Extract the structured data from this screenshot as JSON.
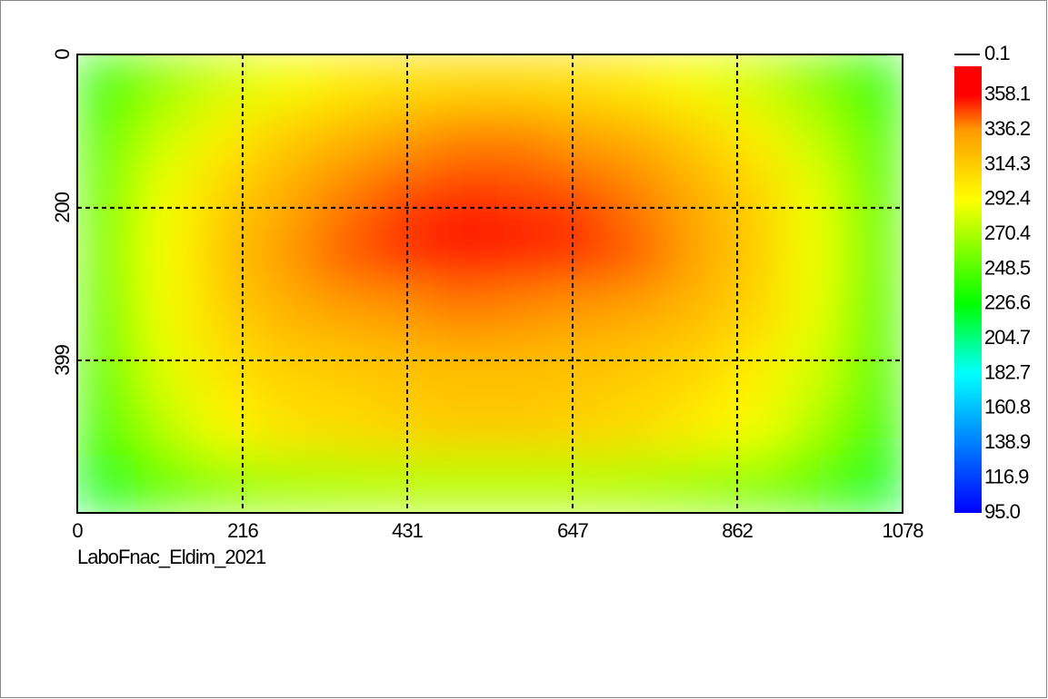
{
  "chart_data": {
    "type": "heatmap",
    "xlim": [
      0,
      1078
    ],
    "xticks": [
      0,
      216,
      431,
      647,
      862,
      1078
    ],
    "ylim": [
      0,
      598
    ],
    "yticks": [
      0,
      200,
      399
    ],
    "y_inverted": true,
    "grid": true,
    "footnote": "LaboFnac_Eldim_2021",
    "clim": [
      95,
      376.3
    ],
    "colorscale": [
      [
        95,
        "#0000ff"
      ],
      [
        182.7,
        "#00ffff"
      ],
      [
        226.6,
        "#00ff00"
      ],
      [
        292.4,
        "#ffff00"
      ],
      [
        336.2,
        "#ff9900"
      ],
      [
        358.1,
        "#ff0000"
      ]
    ],
    "colorbar_ticks": [
      {
        "value": 95,
        "label": "95.0"
      },
      116.9,
      138.9,
      160.8,
      182.7,
      204.7,
      226.6,
      248.5,
      270.4,
      292.4,
      314.3,
      336.2,
      358.1
    ],
    "colorbar_top": 0.1,
    "z": [
      [
        240,
        265,
        280,
        290,
        300,
        305,
        308,
        308,
        305,
        300,
        290,
        280,
        262,
        238
      ],
      [
        250,
        280,
        300,
        315,
        325,
        335,
        340,
        340,
        335,
        328,
        315,
        300,
        278,
        248
      ],
      [
        255,
        290,
        312,
        328,
        340,
        348,
        352,
        350,
        348,
        340,
        328,
        312,
        288,
        252
      ],
      [
        258,
        292,
        318,
        335,
        345,
        352,
        358,
        355,
        352,
        345,
        332,
        315,
        290,
        255
      ],
      [
        255,
        290,
        312,
        325,
        332,
        336,
        340,
        338,
        335,
        330,
        322,
        310,
        288,
        252
      ],
      [
        252,
        285,
        305,
        312,
        315,
        318,
        320,
        320,
        318,
        315,
        310,
        300,
        282,
        250
      ],
      [
        245,
        275,
        295,
        305,
        308,
        312,
        315,
        315,
        312,
        308,
        300,
        292,
        272,
        242
      ],
      [
        225,
        250,
        262,
        268,
        270,
        272,
        272,
        272,
        272,
        270,
        265,
        258,
        248,
        222
      ]
    ]
  }
}
